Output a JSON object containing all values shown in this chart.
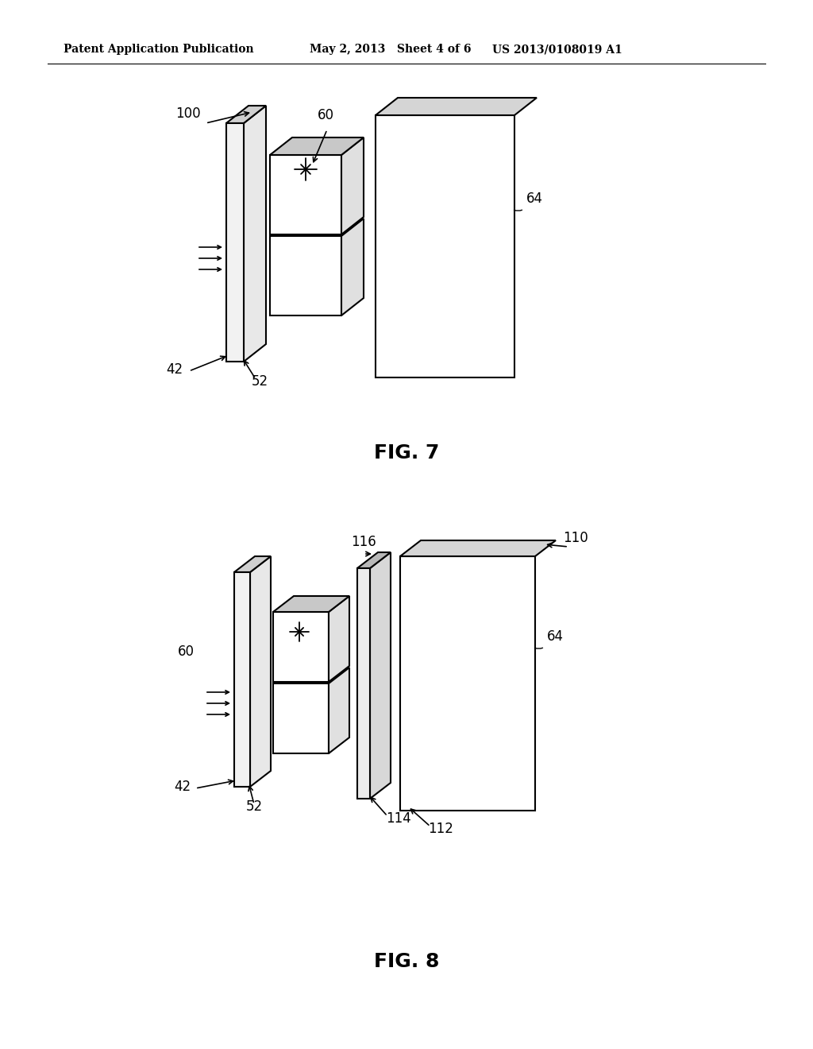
{
  "bg_color": "#ffffff",
  "line_color": "#000000",
  "lw": 1.5,
  "header_left": "Patent Application Publication",
  "header_mid": "May 2, 2013   Sheet 4 of 6",
  "header_right": "US 2013/0108019 A1",
  "fig7_label": "FIG. 7",
  "fig8_label": "FIG. 8"
}
